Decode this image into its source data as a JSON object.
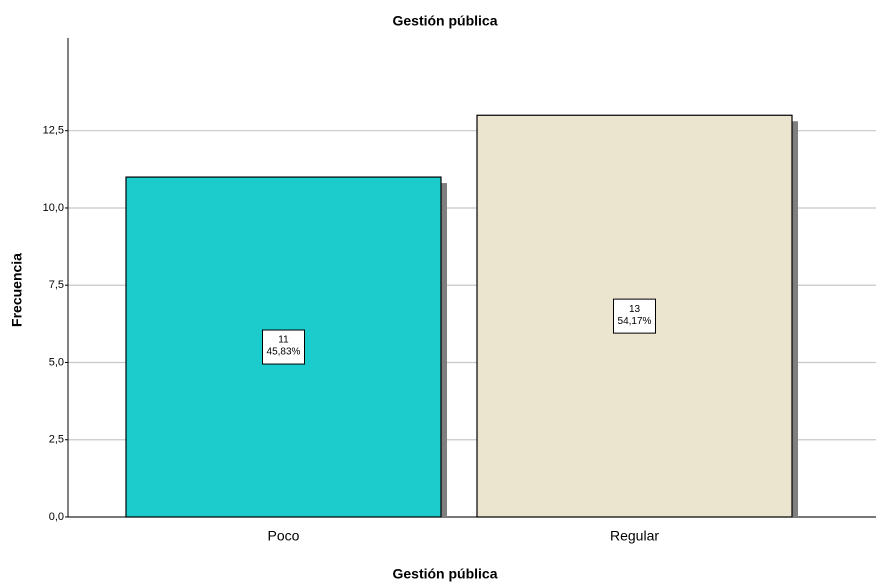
{
  "chart_data": {
    "type": "bar",
    "title": "Gestión pública",
    "x_label": "Gestión pública",
    "y_label": "Frecuencia",
    "categories": [
      "Poco",
      "Regular"
    ],
    "series": [
      {
        "name": "Frecuencia",
        "colors": [
          "#1ccccc",
          "#ebe4cf"
        ],
        "values": [
          11,
          13
        ]
      }
    ],
    "percent_labels": [
      "45,83%",
      "54,17%"
    ],
    "ylim": [
      0,
      15.5
    ],
    "yticks": [
      {
        "value": 0,
        "label": "0,0"
      },
      {
        "value": 2.5,
        "label": "2,5"
      },
      {
        "value": 5,
        "label": "5,0"
      },
      {
        "value": 7.5,
        "label": "7,5"
      },
      {
        "value": 10,
        "label": "10,0"
      },
      {
        "value": 12.5,
        "label": "12,5"
      }
    ],
    "grid": true
  }
}
